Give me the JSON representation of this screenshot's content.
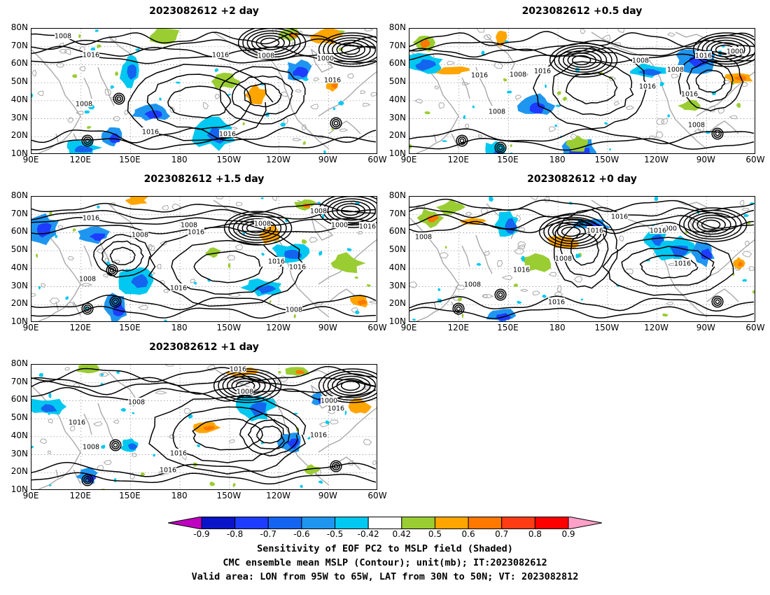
{
  "panels": [
    {
      "title": "2023082612 +2 day"
    },
    {
      "title": "2023082612 +0.5 day"
    },
    {
      "title": "2023082612 +1.5 day"
    },
    {
      "title": "2023082612 +0 day"
    },
    {
      "title": "2023082612 +1 day"
    }
  ],
  "map": {
    "lat_labels": [
      "80N",
      "70N",
      "60N",
      "50N",
      "40N",
      "30N",
      "20N",
      "10N"
    ],
    "lon_labels": [
      "90E",
      "120E",
      "150E",
      "180",
      "150W",
      "120W",
      "90W",
      "60W"
    ],
    "lon_range_deg_east": [
      90,
      300
    ],
    "lat_range": [
      10,
      80
    ],
    "contour_color": "#000000",
    "coast_color": "#a8a8a8",
    "contour_labels": [
      "1000",
      "1008",
      "1016"
    ]
  },
  "colorbar": {
    "labels": [
      "-0.9",
      "-0.8",
      "-0.7",
      "-0.6",
      "-0.5",
      "-0.42",
      "0.42",
      "0.5",
      "0.6",
      "0.7",
      "0.8",
      "0.9"
    ],
    "colors": [
      "#c000c0",
      "#0a14c8",
      "#1e3cff",
      "#1464f0",
      "#1e96f0",
      "#00c8f0",
      "#ffffff",
      "#9acd32",
      "#ffa500",
      "#ff7800",
      "#ff3c14",
      "#ff0000",
      "#ffa0c8"
    ]
  },
  "caption": {
    "line1": "Sensitivity of EOF PC2 to MSLP field (Shaded)",
    "line2": "CMC ensemble mean MSLP (Contour); unit(mb); IT:2023082612",
    "line3": "Valid area: LON from 95W to 65W, LAT from 30N to 50N; VT: 2023082812"
  }
}
